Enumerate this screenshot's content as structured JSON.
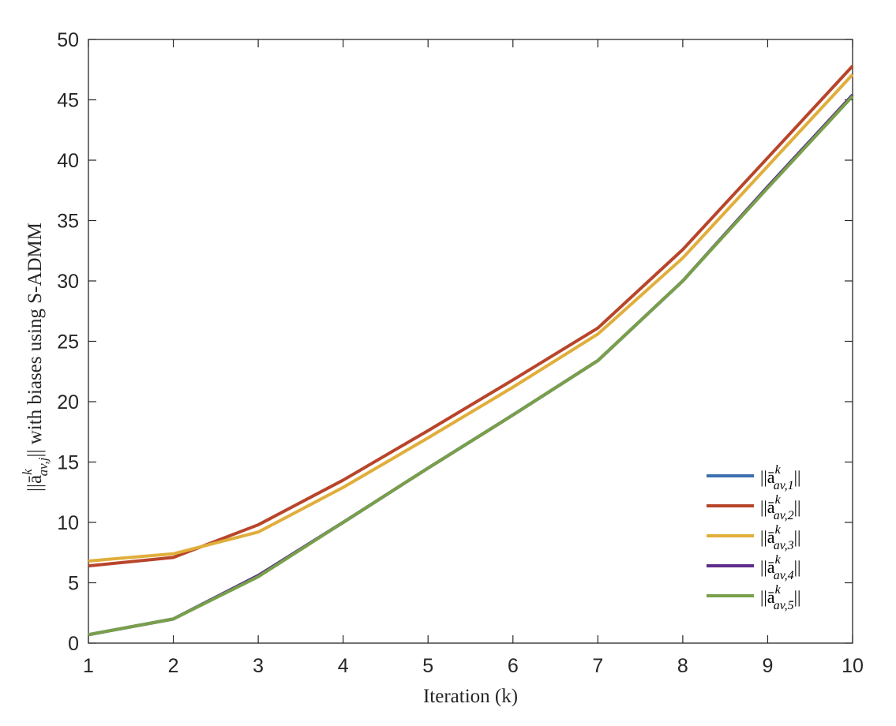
{
  "chart_data": {
    "type": "line",
    "xlabel": "Iteration (k)",
    "ylabel": "||ā^k_{av,j}|| with biases using S-ADMM",
    "x": [
      1,
      2,
      3,
      4,
      5,
      6,
      7,
      8,
      9,
      10
    ],
    "xticks": [
      "1",
      "2",
      "3",
      "4",
      "5",
      "6",
      "7",
      "8",
      "9",
      "10"
    ],
    "yticks": [
      "0",
      "5",
      "10",
      "15",
      "20",
      "25",
      "30",
      "35",
      "40",
      "45",
      "50"
    ],
    "xlim": [
      1,
      10
    ],
    "ylim": [
      0,
      50
    ],
    "grid": false,
    "legend_position": "bottom-right",
    "series": [
      {
        "name": "||ā^k_{av,1}||",
        "color": "#3E6FB0",
        "values": [
          0.7,
          2.0,
          5.6,
          10.0,
          14.5,
          18.9,
          23.4,
          30.0,
          37.8,
          45.4
        ]
      },
      {
        "name": "||ā^k_{av,2}||",
        "color": "#B8452A",
        "values": [
          6.4,
          7.1,
          9.8,
          13.5,
          17.6,
          21.8,
          26.1,
          32.6,
          40.2,
          47.8
        ]
      },
      {
        "name": "||ā^k_{av,3}||",
        "color": "#E0AE3B",
        "values": [
          6.8,
          7.4,
          9.2,
          12.9,
          17.0,
          21.2,
          25.6,
          31.9,
          39.5,
          47.1
        ]
      },
      {
        "name": "||ā^k_{av,4}||",
        "color": "#5E2C8A",
        "values": [
          0.7,
          2.0,
          5.6,
          10.0,
          14.5,
          18.9,
          23.4,
          30.0,
          37.8,
          45.4
        ]
      },
      {
        "name": "||ā^k_{av,5}||",
        "color": "#78A04A",
        "values": [
          0.7,
          2.0,
          5.5,
          10.0,
          14.5,
          18.9,
          23.4,
          30.0,
          37.7,
          45.3
        ]
      }
    ],
    "legend_labels": [
      {
        "base": "||ā",
        "sup": "k",
        "sub": "av,1",
        "tail": "||"
      },
      {
        "base": "||ā",
        "sup": "k",
        "sub": "av,2",
        "tail": "||"
      },
      {
        "base": "||ā",
        "sup": "k",
        "sub": "av,3",
        "tail": "||"
      },
      {
        "base": "||ā",
        "sup": "k",
        "sub": "av,4",
        "tail": "||"
      },
      {
        "base": "||ā",
        "sup": "k",
        "sub": "av,5",
        "tail": "||"
      }
    ],
    "ylabel_parts": {
      "base": "||ā",
      "sup": "k",
      "sub": "av,j",
      "tail": "|| with biases using S-ADMM"
    }
  }
}
